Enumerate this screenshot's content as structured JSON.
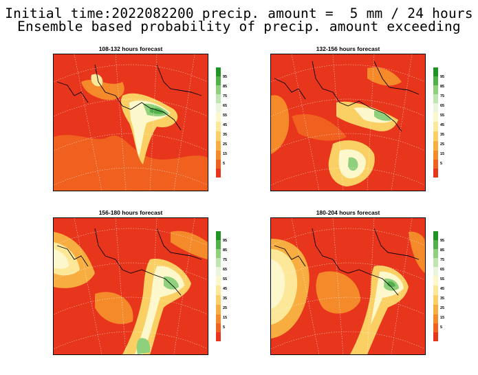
{
  "header": {
    "line1": "Initial time:2022082200 precip. amount =  5 mm / 24 hours",
    "line2": "Ensemble based probability of precip. amount exceeding"
  },
  "colorbar": {
    "colors": [
      "#e8361c",
      "#f0601e",
      "#f48a2a",
      "#f7ad3f",
      "#fad064",
      "#fde89a",
      "#fdf7cc",
      "#e9f5dc",
      "#bfe5b0",
      "#8fd07c",
      "#52b04a",
      "#1e9425"
    ],
    "labels": [
      "5",
      "15",
      "25",
      "35",
      "45",
      "55",
      "65",
      "75",
      "85",
      "95"
    ]
  },
  "panels": [
    {
      "id": "p1",
      "title": "108-132 hours forecast"
    },
    {
      "id": "p2",
      "title": "132-156 hours forecast"
    },
    {
      "id": "p3",
      "title": "156-180 hours forecast"
    },
    {
      "id": "p4",
      "title": "180-204 hours forecast"
    }
  ]
}
